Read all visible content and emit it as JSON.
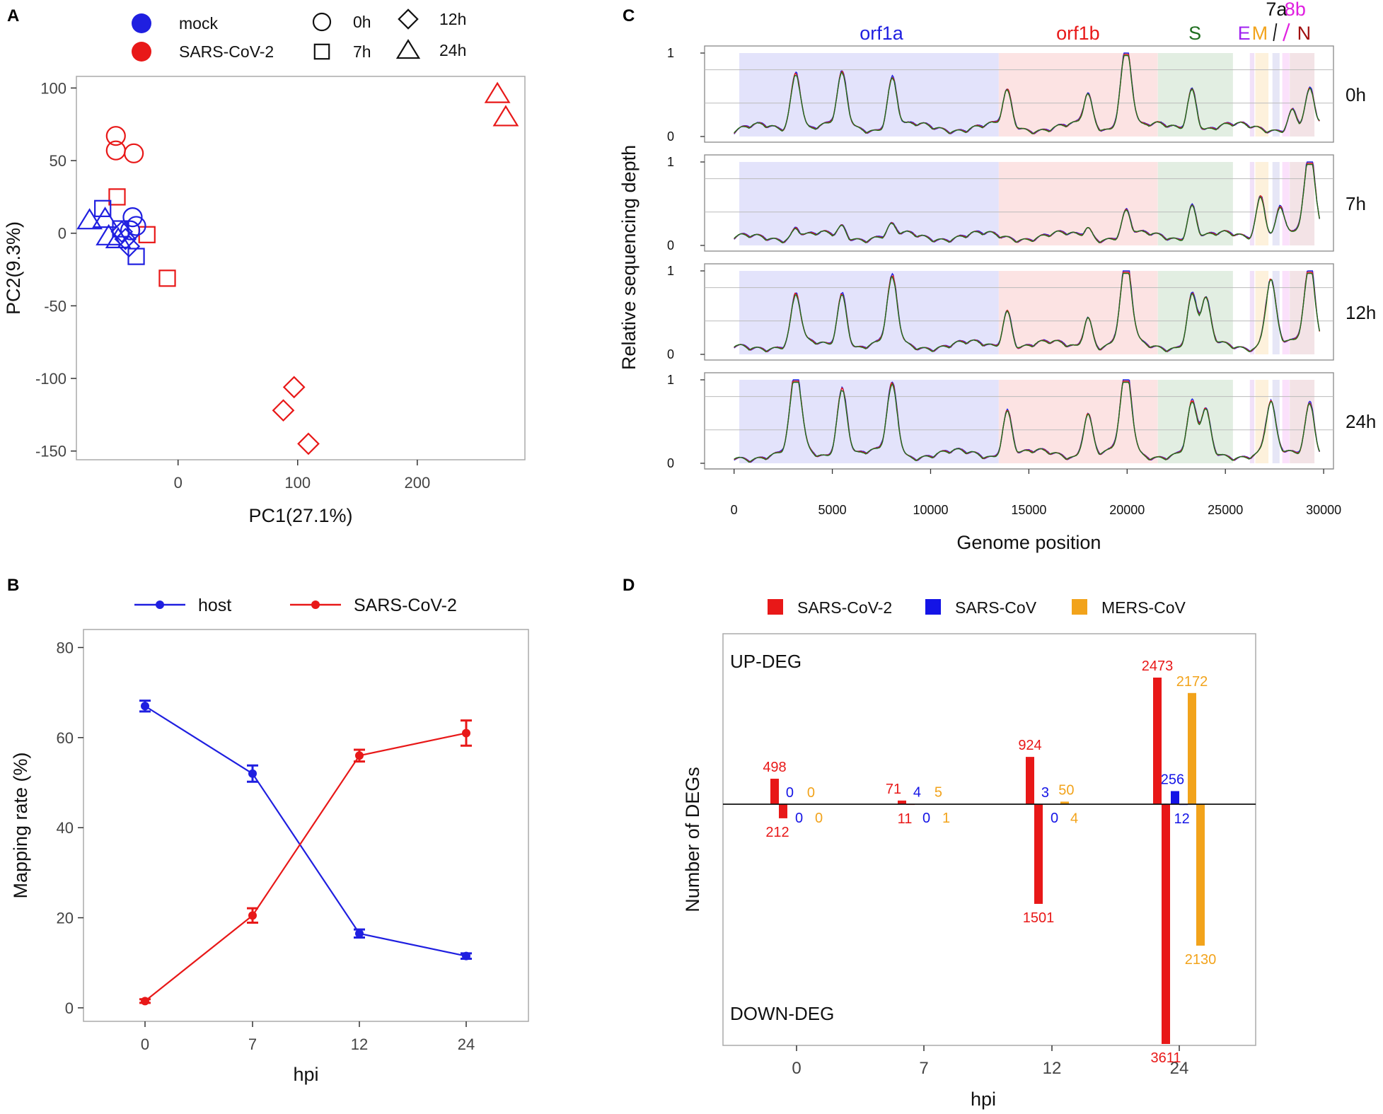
{
  "colors": {
    "mock": "#1f1fe0",
    "sars2": "#e81818",
    "sars": "#1414e6",
    "mers": "#f2a31b",
    "green": "#1f6e1f",
    "purple": "#a020f0",
    "magenta": "#e020e0",
    "darkred": "#a01010",
    "bg_orf1a": "#e3e3fb",
    "bg_orf1b": "#fce3e3",
    "bg_s": "#e2eee2",
    "bg_e": "#f1e1f8",
    "bg_m": "#fdf1dc",
    "bg_7a": "#e6e6f6",
    "bg_8b": "#fbe1fb",
    "bg_n": "#f3e3e6"
  },
  "panels": {
    "a": "A",
    "b": "B",
    "c": "C",
    "d": "D"
  },
  "chart_data": [
    {
      "id": "A",
      "type": "scatter",
      "xlabel": "PC1(27.1%)",
      "ylabel": "PC2(9.3%)",
      "xlim": [
        -85,
        290
      ],
      "ylim": [
        -156,
        108
      ],
      "xticks": [
        0,
        100,
        200
      ],
      "yticks": [
        100,
        50,
        0,
        -50,
        -100,
        -150
      ],
      "legend": {
        "groups": [
          "mock",
          "SARS-CoV-2"
        ],
        "timepoints": [
          "0h",
          "7h",
          "12h",
          "24h"
        ]
      },
      "points": [
        {
          "g": "sars2",
          "t": "0h",
          "x": -52,
          "y": 67
        },
        {
          "g": "sars2",
          "t": "0h",
          "x": -52,
          "y": 57
        },
        {
          "g": "sars2",
          "t": "0h",
          "x": -37,
          "y": 55
        },
        {
          "g": "sars2",
          "t": "7h",
          "x": -51,
          "y": 25
        },
        {
          "g": "sars2",
          "t": "7h",
          "x": -26,
          "y": -1
        },
        {
          "g": "sars2",
          "t": "7h",
          "x": -9,
          "y": -31
        },
        {
          "g": "sars2",
          "t": "12h",
          "x": 97,
          "y": -106
        },
        {
          "g": "sars2",
          "t": "12h",
          "x": 88,
          "y": -122
        },
        {
          "g": "sars2",
          "t": "12h",
          "x": 109,
          "y": -145
        },
        {
          "g": "sars2",
          "t": "24h",
          "x": 267,
          "y": 96
        },
        {
          "g": "sars2",
          "t": "24h",
          "x": 274,
          "y": 80
        },
        {
          "g": "mock",
          "t": "0h",
          "x": -38,
          "y": 11
        },
        {
          "g": "mock",
          "t": "0h",
          "x": -35,
          "y": 5
        },
        {
          "g": "mock",
          "t": "0h",
          "x": -40,
          "y": 2
        },
        {
          "g": "mock",
          "t": "7h",
          "x": -63,
          "y": 17
        },
        {
          "g": "mock",
          "t": "7h",
          "x": -35,
          "y": -16
        },
        {
          "g": "mock",
          "t": "7h",
          "x": -48,
          "y": 3
        },
        {
          "g": "mock",
          "t": "12h",
          "x": -44,
          "y": -4
        },
        {
          "g": "mock",
          "t": "12h",
          "x": -41,
          "y": -9
        },
        {
          "g": "mock",
          "t": "12h",
          "x": -47,
          "y": 1
        },
        {
          "g": "mock",
          "t": "24h",
          "x": -74,
          "y": 9
        },
        {
          "g": "mock",
          "t": "24h",
          "x": -61,
          "y": 10
        },
        {
          "g": "mock",
          "t": "24h",
          "x": -58,
          "y": -2
        },
        {
          "g": "mock",
          "t": "24h",
          "x": -50,
          "y": -4
        }
      ]
    },
    {
      "id": "B",
      "type": "line",
      "xlabel": "hpi",
      "ylabel": "Mapping rate (%)",
      "categories": [
        "0",
        "7",
        "12",
        "24"
      ],
      "ylim": [
        -3,
        84
      ],
      "yticks": [
        0,
        20,
        40,
        60,
        80
      ],
      "series": [
        {
          "name": "host",
          "color": "mock",
          "values": [
            67,
            52,
            16.5,
            11.5
          ],
          "errors": [
            1.2,
            1.8,
            0.9,
            0.6
          ]
        },
        {
          "name": "SARS-CoV-2",
          "color": "sars2",
          "values": [
            1.5,
            20.5,
            56,
            61
          ],
          "errors": [
            0.4,
            1.6,
            1.3,
            2.8
          ]
        }
      ]
    },
    {
      "id": "C",
      "type": "line",
      "xlabel": "Genome position",
      "ylabel": "Relative sequencing depth",
      "xlim": [
        -1500,
        30500
      ],
      "xticks": [
        0,
        5000,
        10000,
        15000,
        20000,
        25000,
        30000
      ],
      "ylim": [
        0,
        1
      ],
      "yticks": [
        0,
        1
      ],
      "facets": [
        "0h",
        "7h",
        "12h",
        "24h"
      ],
      "gene_regions": [
        {
          "name": "orf1a",
          "start": 266,
          "end": 13468,
          "bg": "bg_orf1a",
          "color": "mock",
          "label_x": 7500,
          "label_row": 1
        },
        {
          "name": "orf1b",
          "start": 13468,
          "end": 21555,
          "bg": "bg_orf1b",
          "color": "sars2",
          "label_x": 17500,
          "label_row": 1
        },
        {
          "name": "S",
          "start": 21563,
          "end": 25384,
          "bg": "bg_s",
          "color": "green",
          "label_x": 23450,
          "label_row": 1
        },
        {
          "name": "E",
          "start": 26245,
          "end": 26472,
          "bg": "bg_e",
          "color": "purple",
          "label_x": 25950,
          "label_row": 1
        },
        {
          "name": "M",
          "start": 26523,
          "end": 27191,
          "bg": "bg_m",
          "color": "mers",
          "label_x": 26750,
          "label_row": 1
        },
        {
          "name": "7a",
          "start": 27394,
          "end": 27759,
          "bg": "bg_7a",
          "color": "black",
          "label_x": 27600,
          "label_row": 0
        },
        {
          "name": "8b",
          "start": 27894,
          "end": 28259,
          "bg": "bg_8b",
          "color": "magenta",
          "label_x": 28550,
          "label_row": 0
        },
        {
          "name": "N",
          "start": 28274,
          "end": 29533,
          "bg": "bg_n",
          "color": "darkred",
          "label_x": 29000,
          "label_row": 1
        }
      ],
      "profiles": [
        {
          "facet": "0h",
          "peaks": [
            [
              3150,
              0.7
            ],
            [
              5500,
              0.62
            ],
            [
              8050,
              0.6
            ],
            [
              13900,
              0.42
            ],
            [
              18000,
              0.38
            ],
            [
              19950,
              1.0
            ],
            [
              23300,
              0.5
            ],
            [
              28400,
              0.22
            ],
            [
              29300,
              0.42
            ]
          ]
        },
        {
          "facet": "7h",
          "peaks": [
            [
              3150,
              0.12
            ],
            [
              5500,
              0.12
            ],
            [
              8000,
              0.11
            ],
            [
              18000,
              0.12
            ],
            [
              19950,
              0.3
            ],
            [
              23300,
              0.4
            ],
            [
              26800,
              0.52
            ],
            [
              27800,
              0.38
            ],
            [
              29300,
              0.98
            ]
          ]
        },
        {
          "facet": "12h",
          "peaks": [
            [
              3150,
              0.6
            ],
            [
              5500,
              0.65
            ],
            [
              8050,
              0.78
            ],
            [
              13900,
              0.45
            ],
            [
              18000,
              0.38
            ],
            [
              19950,
              0.98
            ],
            [
              23300,
              0.6
            ],
            [
              24000,
              0.52
            ],
            [
              27300,
              0.8
            ],
            [
              29300,
              0.98
            ]
          ]
        },
        {
          "facet": "24h",
          "peaks": [
            [
              3150,
              0.98
            ],
            [
              5500,
              0.82
            ],
            [
              8050,
              0.83
            ],
            [
              13900,
              0.55
            ],
            [
              18000,
              0.52
            ],
            [
              19950,
              1.0
            ],
            [
              23300,
              0.58
            ],
            [
              24000,
              0.5
            ],
            [
              27300,
              0.6
            ],
            [
              29300,
              0.65
            ]
          ]
        }
      ]
    },
    {
      "id": "D",
      "type": "bar",
      "xlabel": "hpi",
      "ylabel": "Number of DEGs",
      "categories": [
        "0",
        "7",
        "12",
        "24"
      ],
      "annotations": [
        "UP-DEG",
        "DOWN-DEG"
      ],
      "series": [
        {
          "name": "SARS-CoV-2",
          "color": "sars2",
          "up": [
            498,
            71,
            924,
            2473
          ],
          "down": [
            212,
            11,
            1501,
            3611
          ]
        },
        {
          "name": "SARS-CoV",
          "color": "sars",
          "up": [
            0,
            4,
            3,
            256
          ],
          "down": [
            0,
            0,
            0,
            12
          ]
        },
        {
          "name": "MERS-CoV",
          "color": "mers",
          "up": [
            0,
            5,
            50,
            2172
          ],
          "down": [
            0,
            1,
            4,
            2130
          ]
        }
      ],
      "ylim_up": 2600,
      "ylim_down": 3900
    }
  ]
}
